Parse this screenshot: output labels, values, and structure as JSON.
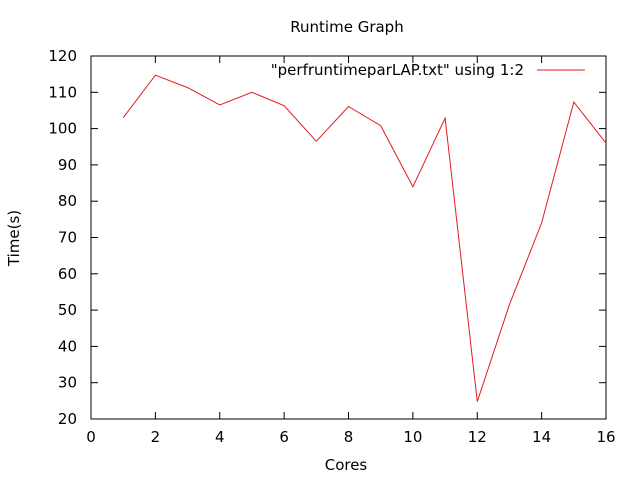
{
  "chart_data": {
    "type": "line",
    "title": "Runtime Graph",
    "xlabel": "Cores",
    "ylabel": "Time(s)",
    "xlim": [
      0,
      16
    ],
    "ylim": [
      20,
      120
    ],
    "x_ticks": [
      0,
      2,
      4,
      6,
      8,
      10,
      12,
      14,
      16
    ],
    "y_ticks": [
      20,
      30,
      40,
      50,
      60,
      70,
      80,
      90,
      100,
      110,
      120
    ],
    "grid": false,
    "legend_position": "top-right",
    "series": [
      {
        "name": "\"perfruntimeparLAP.txt\" using 1:2",
        "color": "#e41a1c",
        "x": [
          1,
          2,
          3,
          4,
          5,
          6,
          7,
          8,
          9,
          10,
          11,
          12,
          13,
          14,
          15,
          16
        ],
        "y": [
          103,
          114.7,
          111.3,
          106.5,
          110,
          106.3,
          96.5,
          106.1,
          100.8,
          84,
          102.9,
          24.8,
          51.5,
          74,
          107.3,
          96
        ]
      }
    ]
  }
}
